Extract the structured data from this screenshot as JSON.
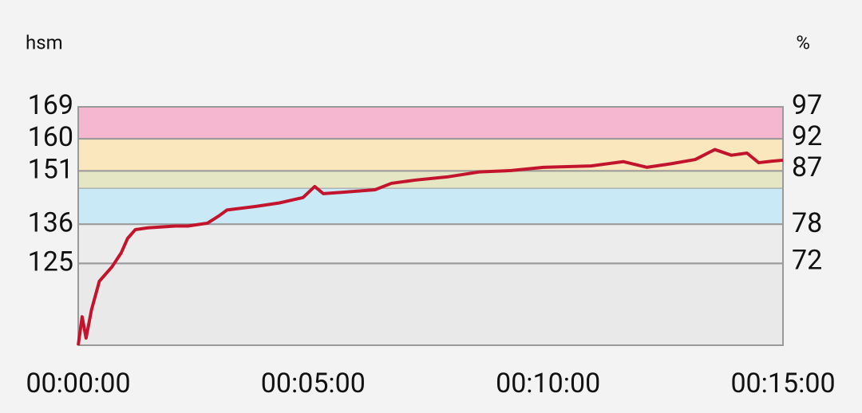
{
  "chart_data": {
    "type": "line",
    "y_label": "hsm",
    "y2_label": "%",
    "x": [
      0,
      5,
      10,
      17,
      27,
      43,
      55,
      63,
      73,
      89,
      124,
      140,
      165,
      180,
      190,
      226,
      257,
      287,
      302,
      313,
      338,
      379,
      400,
      430,
      471,
      512,
      553,
      594,
      655,
      696,
      726,
      757,
      788,
      813,
      834,
      854,
      869,
      885,
      900
    ],
    "values": [
      102,
      110,
      104,
      112,
      120,
      124,
      128,
      132,
      134.5,
      135,
      135.5,
      135.5,
      136.3,
      138.4,
      140,
      141,
      142,
      143.5,
      146.6,
      144.6,
      145,
      145.7,
      147.5,
      148.4,
      149.3,
      150.7,
      151.1,
      152,
      152.4,
      153.6,
      152,
      153,
      154.2,
      157,
      155.4,
      156,
      153.3,
      153.7,
      154
    ],
    "color": "#c3142d",
    "xlim": [
      0,
      900
    ],
    "xticks": [
      {
        "value": 0,
        "label": "00:00:00"
      },
      {
        "value": 300,
        "label": "00:05:00"
      },
      {
        "value": 600,
        "label": "00:10:00"
      },
      {
        "value": 900,
        "label": "00:15:00"
      }
    ],
    "ylim": [
      102,
      169
    ],
    "yticks": [
      125,
      136,
      151,
      160,
      169
    ],
    "y2lim": [
      58.6,
      97
    ],
    "y2ticks": [
      72,
      78,
      87,
      92,
      97
    ],
    "zones": [
      {
        "from": 160,
        "to": 169,
        "color": "#f4b7cf"
      },
      {
        "from": 151,
        "to": 160,
        "color": "#fbe7bd"
      },
      {
        "from": 146,
        "to": 151,
        "color": "#e4e6c4"
      },
      {
        "from": 136,
        "to": 146,
        "color": "#c9e9f7"
      },
      {
        "from": 125,
        "to": 136,
        "color": "#ececec"
      }
    ],
    "grid": true
  }
}
